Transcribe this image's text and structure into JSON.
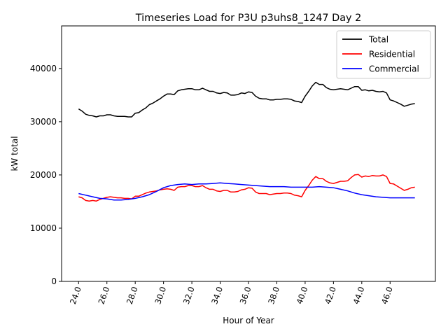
{
  "chart_data": {
    "type": "line",
    "title": "Timeseries Load for P3U p3uhs8_1247  Day 2",
    "xlabel": "Hour of Year",
    "ylabel": "kW total",
    "xlim": [
      22.8,
      49.2
    ],
    "ylim": [
      0,
      48000
    ],
    "xticks": [
      24,
      26,
      28,
      30,
      32,
      34,
      36,
      38,
      40,
      42,
      44,
      46
    ],
    "xtick_labels": [
      "24.0",
      "26.0",
      "28.0",
      "30.0",
      "32.0",
      "34.0",
      "36.0",
      "38.0",
      "40.0",
      "42.0",
      "44.0",
      "46.0"
    ],
    "yticks": [
      0,
      10000,
      20000,
      30000,
      40000
    ],
    "ytick_labels": [
      "0",
      "10000",
      "20000",
      "30000",
      "40000"
    ],
    "grid": false,
    "legend_position": "top-right",
    "series": [
      {
        "name": "Total",
        "color": "#000000",
        "points": [
          [
            24.0,
            32400
          ],
          [
            24.25,
            32000
          ],
          [
            24.5,
            31400
          ],
          [
            24.75,
            31200
          ],
          [
            25.0,
            31100
          ],
          [
            25.25,
            30900
          ],
          [
            25.5,
            31100
          ],
          [
            25.75,
            31100
          ],
          [
            26.0,
            31300
          ],
          [
            26.25,
            31300
          ],
          [
            26.5,
            31100
          ],
          [
            26.75,
            31000
          ],
          [
            27.0,
            31000
          ],
          [
            27.25,
            31000
          ],
          [
            27.5,
            30900
          ],
          [
            27.75,
            30900
          ],
          [
            28.0,
            31600
          ],
          [
            28.25,
            31700
          ],
          [
            28.5,
            32200
          ],
          [
            28.75,
            32600
          ],
          [
            29.0,
            33200
          ],
          [
            29.25,
            33500
          ],
          [
            29.5,
            33900
          ],
          [
            29.75,
            34300
          ],
          [
            30.0,
            34800
          ],
          [
            30.25,
            35200
          ],
          [
            30.5,
            35200
          ],
          [
            30.75,
            35100
          ],
          [
            31.0,
            35800
          ],
          [
            31.25,
            36000
          ],
          [
            31.5,
            36100
          ],
          [
            31.75,
            36200
          ],
          [
            32.0,
            36200
          ],
          [
            32.25,
            36000
          ],
          [
            32.5,
            36000
          ],
          [
            32.75,
            36300
          ],
          [
            33.0,
            36000
          ],
          [
            33.25,
            35700
          ],
          [
            33.5,
            35700
          ],
          [
            33.75,
            35400
          ],
          [
            34.0,
            35300
          ],
          [
            34.25,
            35500
          ],
          [
            34.5,
            35400
          ],
          [
            34.75,
            35000
          ],
          [
            35.0,
            35000
          ],
          [
            35.25,
            35100
          ],
          [
            35.5,
            35400
          ],
          [
            35.75,
            35300
          ],
          [
            36.0,
            35600
          ],
          [
            36.25,
            35500
          ],
          [
            36.5,
            34800
          ],
          [
            36.75,
            34400
          ],
          [
            37.0,
            34300
          ],
          [
            37.25,
            34300
          ],
          [
            37.5,
            34100
          ],
          [
            37.75,
            34100
          ],
          [
            38.0,
            34200
          ],
          [
            38.25,
            34200
          ],
          [
            38.5,
            34300
          ],
          [
            38.75,
            34300
          ],
          [
            39.0,
            34200
          ],
          [
            39.25,
            33900
          ],
          [
            39.5,
            33800
          ],
          [
            39.75,
            33600
          ],
          [
            40.0,
            34800
          ],
          [
            40.25,
            35700
          ],
          [
            40.5,
            36700
          ],
          [
            40.75,
            37400
          ],
          [
            41.0,
            37000
          ],
          [
            41.25,
            37000
          ],
          [
            41.5,
            36400
          ],
          [
            41.75,
            36100
          ],
          [
            42.0,
            36000
          ],
          [
            42.25,
            36100
          ],
          [
            42.5,
            36200
          ],
          [
            42.75,
            36100
          ],
          [
            43.0,
            36000
          ],
          [
            43.25,
            36300
          ],
          [
            43.5,
            36600
          ],
          [
            43.75,
            36600
          ],
          [
            44.0,
            35900
          ],
          [
            44.25,
            36000
          ],
          [
            44.5,
            35800
          ],
          [
            44.75,
            35900
          ],
          [
            45.0,
            35700
          ],
          [
            45.25,
            35600
          ],
          [
            45.5,
            35700
          ],
          [
            45.75,
            35400
          ],
          [
            46.0,
            34100
          ],
          [
            46.25,
            33900
          ],
          [
            46.5,
            33600
          ],
          [
            46.75,
            33300
          ],
          [
            47.0,
            32900
          ],
          [
            47.25,
            33100
          ],
          [
            47.5,
            33300
          ],
          [
            47.75,
            33400
          ]
        ]
      },
      {
        "name": "Residential",
        "color": "#ff0000",
        "points": [
          [
            24.0,
            15900
          ],
          [
            24.25,
            15700
          ],
          [
            24.5,
            15200
          ],
          [
            24.75,
            15100
          ],
          [
            25.0,
            15200
          ],
          [
            25.25,
            15100
          ],
          [
            25.5,
            15400
          ],
          [
            25.75,
            15600
          ],
          [
            26.0,
            15800
          ],
          [
            26.25,
            15900
          ],
          [
            26.5,
            15800
          ],
          [
            26.75,
            15700
          ],
          [
            27.0,
            15700
          ],
          [
            27.25,
            15600
          ],
          [
            27.5,
            15600
          ],
          [
            27.75,
            15500
          ],
          [
            28.0,
            16000
          ],
          [
            28.25,
            16000
          ],
          [
            28.5,
            16300
          ],
          [
            28.75,
            16600
          ],
          [
            29.0,
            16800
          ],
          [
            29.25,
            16900
          ],
          [
            29.5,
            17000
          ],
          [
            29.75,
            17200
          ],
          [
            30.0,
            17300
          ],
          [
            30.25,
            17400
          ],
          [
            30.5,
            17300
          ],
          [
            30.75,
            17100
          ],
          [
            31.0,
            17700
          ],
          [
            31.25,
            17800
          ],
          [
            31.5,
            17800
          ],
          [
            31.75,
            18000
          ],
          [
            32.0,
            18000
          ],
          [
            32.25,
            17800
          ],
          [
            32.5,
            17800
          ],
          [
            32.75,
            18000
          ],
          [
            33.0,
            17600
          ],
          [
            33.25,
            17300
          ],
          [
            33.5,
            17300
          ],
          [
            33.75,
            17000
          ],
          [
            34.0,
            16900
          ],
          [
            34.25,
            17100
          ],
          [
            34.5,
            17100
          ],
          [
            34.75,
            16800
          ],
          [
            35.0,
            16800
          ],
          [
            35.25,
            16900
          ],
          [
            35.5,
            17200
          ],
          [
            35.75,
            17300
          ],
          [
            36.0,
            17600
          ],
          [
            36.25,
            17500
          ],
          [
            36.5,
            16800
          ],
          [
            36.75,
            16500
          ],
          [
            37.0,
            16500
          ],
          [
            37.25,
            16500
          ],
          [
            37.5,
            16300
          ],
          [
            37.75,
            16400
          ],
          [
            38.0,
            16500
          ],
          [
            38.25,
            16500
          ],
          [
            38.5,
            16600
          ],
          [
            38.75,
            16600
          ],
          [
            39.0,
            16500
          ],
          [
            39.25,
            16200
          ],
          [
            39.5,
            16100
          ],
          [
            39.75,
            15900
          ],
          [
            40.0,
            17100
          ],
          [
            40.25,
            18000
          ],
          [
            40.5,
            19000
          ],
          [
            40.75,
            19700
          ],
          [
            41.0,
            19300
          ],
          [
            41.25,
            19300
          ],
          [
            41.5,
            18800
          ],
          [
            41.75,
            18500
          ],
          [
            42.0,
            18400
          ],
          [
            42.25,
            18600
          ],
          [
            42.5,
            18800
          ],
          [
            42.75,
            18800
          ],
          [
            43.0,
            18900
          ],
          [
            43.25,
            19500
          ],
          [
            43.5,
            20000
          ],
          [
            43.75,
            20100
          ],
          [
            44.0,
            19600
          ],
          [
            44.25,
            19800
          ],
          [
            44.5,
            19700
          ],
          [
            44.75,
            19900
          ],
          [
            45.0,
            19800
          ],
          [
            45.25,
            19800
          ],
          [
            45.5,
            20000
          ],
          [
            45.75,
            19700
          ],
          [
            46.0,
            18400
          ],
          [
            46.25,
            18300
          ],
          [
            46.5,
            17900
          ],
          [
            46.75,
            17500
          ],
          [
            47.0,
            17100
          ],
          [
            47.25,
            17300
          ],
          [
            47.5,
            17600
          ],
          [
            47.75,
            17700
          ]
        ]
      },
      {
        "name": "Commercial",
        "color": "#0000ff",
        "points": [
          [
            24.0,
            16500
          ],
          [
            24.5,
            16200
          ],
          [
            25.0,
            15900
          ],
          [
            25.5,
            15600
          ],
          [
            26.0,
            15500
          ],
          [
            26.5,
            15300
          ],
          [
            27.0,
            15300
          ],
          [
            27.5,
            15400
          ],
          [
            28.0,
            15600
          ],
          [
            28.5,
            15900
          ],
          [
            29.0,
            16300
          ],
          [
            29.5,
            16900
          ],
          [
            30.0,
            17600
          ],
          [
            30.5,
            18000
          ],
          [
            31.0,
            18200
          ],
          [
            31.5,
            18300
          ],
          [
            32.0,
            18200
          ],
          [
            32.5,
            18300
          ],
          [
            33.0,
            18300
          ],
          [
            33.5,
            18400
          ],
          [
            34.0,
            18500
          ],
          [
            34.5,
            18400
          ],
          [
            35.0,
            18300
          ],
          [
            35.5,
            18200
          ],
          [
            36.0,
            18100
          ],
          [
            36.5,
            18000
          ],
          [
            37.0,
            17900
          ],
          [
            37.5,
            17800
          ],
          [
            38.0,
            17800
          ],
          [
            38.5,
            17800
          ],
          [
            39.0,
            17700
          ],
          [
            39.5,
            17700
          ],
          [
            40.0,
            17700
          ],
          [
            40.5,
            17700
          ],
          [
            41.0,
            17800
          ],
          [
            41.5,
            17700
          ],
          [
            42.0,
            17600
          ],
          [
            42.5,
            17300
          ],
          [
            43.0,
            17000
          ],
          [
            43.5,
            16600
          ],
          [
            44.0,
            16300
          ],
          [
            44.5,
            16100
          ],
          [
            45.0,
            15900
          ],
          [
            45.5,
            15800
          ],
          [
            46.0,
            15700
          ],
          [
            46.5,
            15700
          ],
          [
            47.0,
            15700
          ],
          [
            47.5,
            15700
          ],
          [
            47.75,
            15700
          ]
        ]
      }
    ]
  }
}
